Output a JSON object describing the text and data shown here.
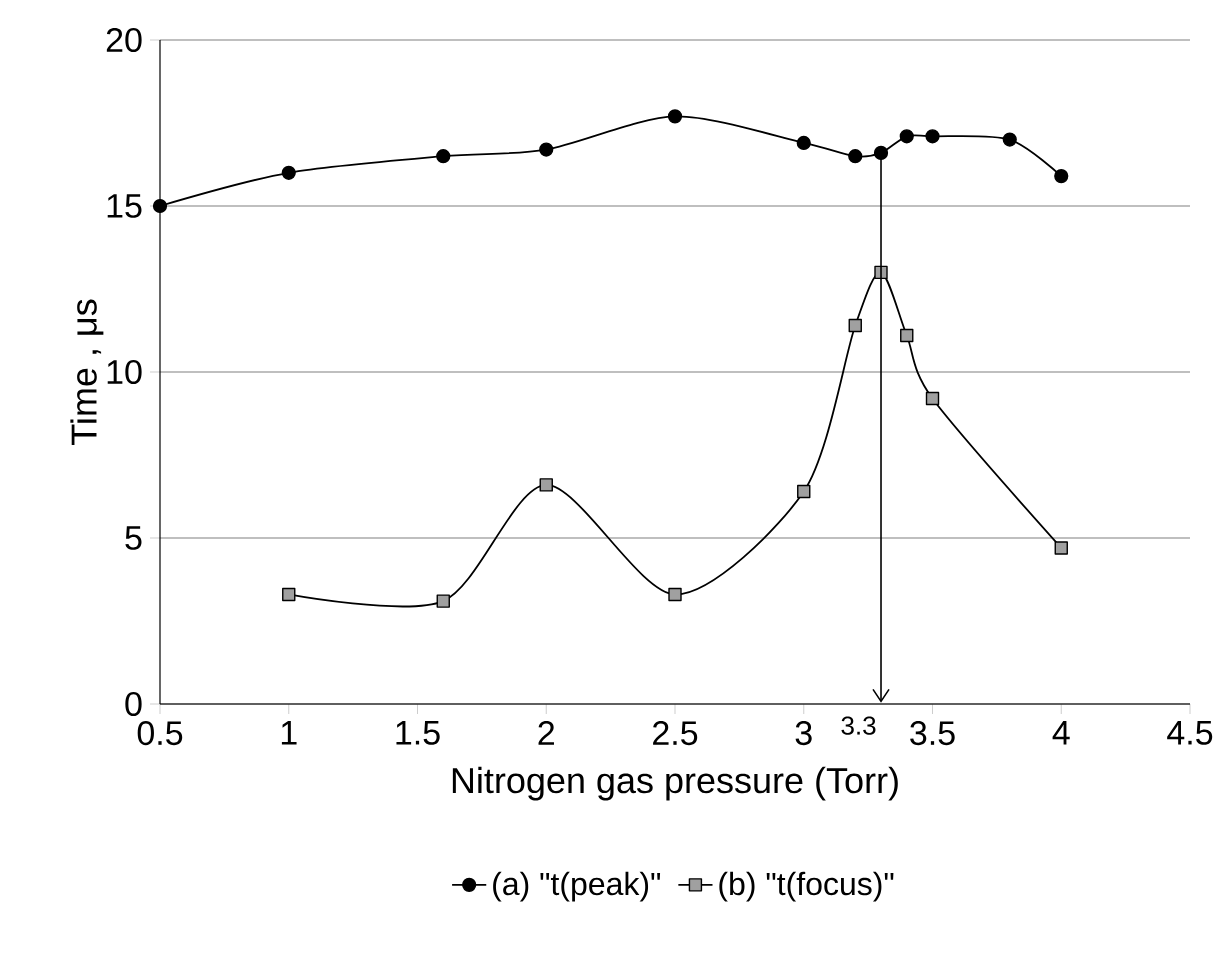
{
  "chart_data": {
    "type": "line",
    "xlabel": "Nitrogen gas pressure (Torr)",
    "ylabel": "Time , μs",
    "xlim": [
      0.5,
      4.5
    ],
    "xticks": [
      0.5,
      1,
      1.5,
      2,
      2.5,
      3,
      3.5,
      4,
      4.5
    ],
    "ylim": [
      0,
      20
    ],
    "yticks": [
      0,
      5,
      10,
      15,
      20
    ],
    "grid": "y",
    "legend": "bottom",
    "ref_lines": [
      {
        "axis": "x",
        "value": 3.3,
        "label": "3.3",
        "color": "#000000"
      }
    ],
    "series": [
      {
        "name": "(a) \"t(peak)\"",
        "color": "#000000",
        "marker": "circle",
        "x": [
          0.5,
          1.0,
          1.6,
          2.0,
          2.5,
          3.0,
          3.2,
          3.3,
          3.4,
          3.5,
          3.8,
          4.0
        ],
        "values": [
          15.0,
          16.0,
          16.5,
          16.7,
          17.7,
          16.9,
          16.5,
          16.6,
          17.1,
          17.1,
          17.0,
          15.9
        ]
      },
      {
        "name": "(b) \"t(focus)\"",
        "color": "#a0a0a0",
        "marker": "square",
        "x": [
          1.0,
          1.6,
          2.0,
          2.5,
          3.0,
          3.2,
          3.3,
          3.4,
          3.5,
          4.0
        ],
        "values": [
          3.3,
          3.1,
          6.6,
          3.3,
          6.4,
          11.4,
          13.0,
          11.1,
          9.2,
          4.7
        ]
      }
    ]
  }
}
